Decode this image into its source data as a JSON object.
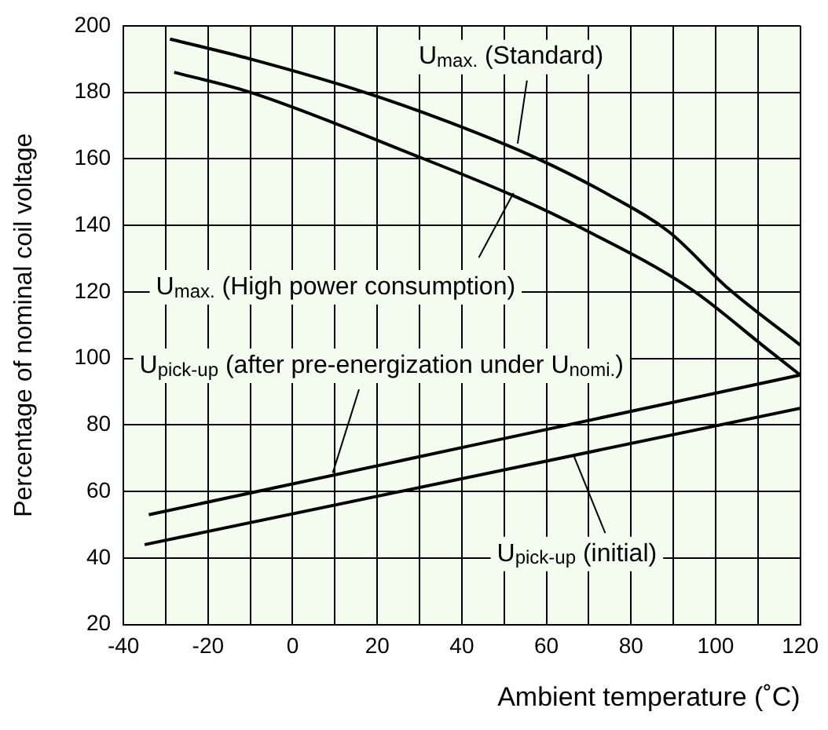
{
  "chart_data": {
    "type": "line",
    "xlabel": "Ambient temperature (˚C)",
    "ylabel": "Percentage of nominal coil voltage",
    "xlim": [
      -40,
      120
    ],
    "ylim": [
      20,
      200
    ],
    "xticks": [
      -40,
      {
        "value": -30,
        "label": null
      },
      -20,
      {
        "value": -10,
        "label": null
      },
      0,
      {
        "value": 10,
        "label": null
      },
      20,
      {
        "value": 30,
        "label": null
      },
      40,
      {
        "value": 50,
        "label": null
      },
      60,
      {
        "value": 70,
        "label": null
      },
      80,
      {
        "value": 90,
        "label": null
      },
      100,
      {
        "value": 110,
        "label": null
      },
      120
    ],
    "yticks": [
      20,
      40,
      60,
      80,
      100,
      120,
      140,
      160,
      180,
      200
    ],
    "grid": true,
    "legend": false,
    "marker": "none",
    "line_style": "solid",
    "series": [
      {
        "name": "U$_{max.}$ (Standard)",
        "color": "#000000",
        "x": [
          -29,
          -10,
          17,
          37,
          58,
          75,
          89,
          103,
          120
        ],
        "values": [
          196,
          190,
          180,
          171,
          160,
          149,
          138,
          121,
          104
        ]
      },
      {
        "name": "U$_{max.}$ (High power consumption)",
        "color": "#000000",
        "x": [
          -28,
          -10,
          29,
          52,
          67,
          94,
          112,
          120
        ],
        "values": [
          186,
          180,
          161,
          149,
          140,
          121,
          103,
          95
        ]
      },
      {
        "name": "U$_{pick-up}$ (after pre-energization under U$_{nomi.}$)",
        "color": "#000000",
        "x": [
          -34,
          120
        ],
        "values": [
          53,
          95
        ]
      },
      {
        "name": "U$_{pick-up}$ (initial)",
        "color": "#000000",
        "x": [
          -35,
          120
        ],
        "values": [
          44,
          85
        ]
      }
    ]
  }
}
